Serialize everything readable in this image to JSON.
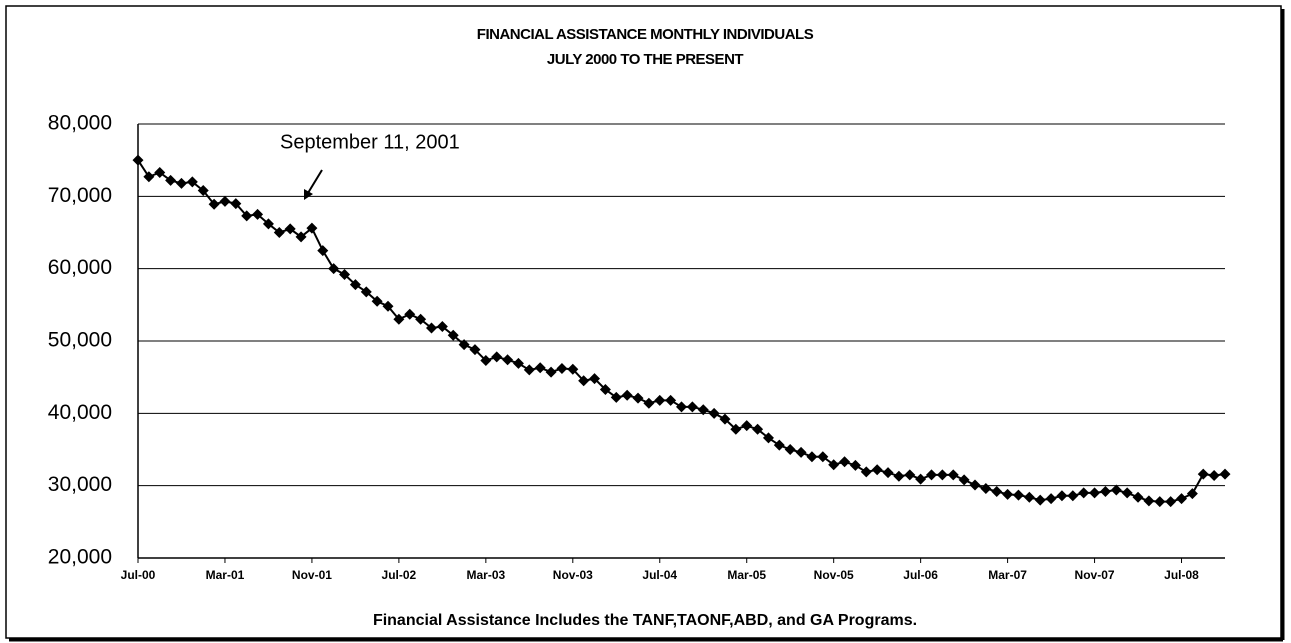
{
  "chart_data": {
    "type": "line",
    "title": "FINANCIAL ASSISTANCE MONTHLY INDIVIDUALS",
    "subtitle": "JULY 2000 TO THE PRESENT",
    "annotation": "September 11, 2001",
    "note": "Financial Assistance Includes the TANF,TAONF,ABD, and GA Programs.",
    "categories": [
      "Jul-00",
      null,
      null,
      null,
      null,
      null,
      null,
      null,
      "Mar-01",
      null,
      null,
      null,
      null,
      null,
      null,
      null,
      "Nov-01",
      null,
      null,
      null,
      null,
      null,
      null,
      null,
      "Jul-02",
      null,
      null,
      null,
      null,
      null,
      null,
      null,
      "Mar-03",
      null,
      null,
      null,
      null,
      null,
      null,
      null,
      "Nov-03",
      null,
      null,
      null,
      null,
      null,
      null,
      null,
      "Jul-04",
      null,
      null,
      null,
      null,
      null,
      null,
      null,
      "Mar-05",
      null,
      null,
      null,
      null,
      null,
      null,
      null,
      "Nov-05",
      null,
      null,
      null,
      null,
      null,
      null,
      null,
      "Jul-06",
      null,
      null,
      null,
      null,
      null,
      null,
      null,
      "Mar-07",
      null,
      null,
      null,
      null,
      null,
      null,
      null,
      "Nov-07",
      null,
      null,
      null,
      null,
      null,
      null,
      null,
      "Jul-08",
      null,
      null,
      null,
      null
    ],
    "values": [
      75000,
      72700,
      73300,
      72200,
      71800,
      72000,
      70800,
      68900,
      69300,
      69000,
      67300,
      67500,
      66200,
      65000,
      65500,
      64400,
      65600,
      62500,
      60000,
      59200,
      57800,
      56800,
      55500,
      54800,
      53000,
      53700,
      53000,
      51800,
      52000,
      50800,
      49500,
      48800,
      47300,
      47800,
      47400,
      46900,
      46000,
      46300,
      45700,
      46200,
      46100,
      44500,
      44800,
      43300,
      42200,
      42500,
      42100,
      41400,
      41800,
      41800,
      40900,
      40900,
      40500,
      40000,
      39200,
      37800,
      38300,
      37800,
      36600,
      35600,
      35000,
      34600,
      34000,
      34000,
      32900,
      33300,
      32800,
      31900,
      32200,
      31800,
      31300,
      31500,
      30900,
      31500,
      31500,
      31500,
      30800,
      30100,
      29600,
      29200,
      28800,
      28700,
      28400,
      28000,
      28200,
      28600,
      28600,
      29000,
      29000,
      29200,
      29400,
      29000,
      28400,
      27900,
      27800,
      27800,
      28200,
      28900,
      31600,
      31400,
      31600
    ],
    "color": "#000000",
    "ylim": [
      20000,
      80000
    ],
    "yticks": [
      {
        "value": 20000,
        "label": "20,000"
      },
      {
        "value": 30000,
        "label": "30,000"
      },
      {
        "value": 40000,
        "label": "40,000"
      },
      {
        "value": 50000,
        "label": "50,000"
      },
      {
        "value": 60000,
        "label": "60,000"
      },
      {
        "value": 70000,
        "label": "70,000"
      },
      {
        "value": 80000,
        "label": "80,000"
      }
    ],
    "grid": true
  }
}
